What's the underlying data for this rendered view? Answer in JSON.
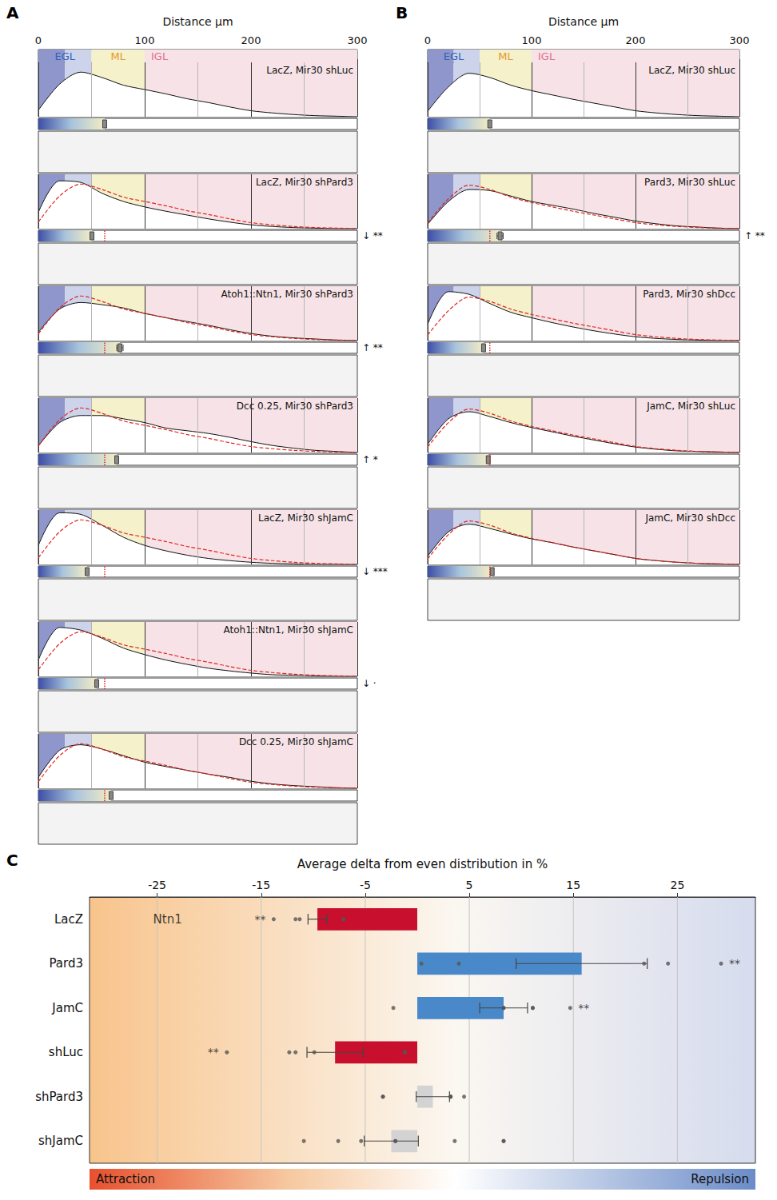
{
  "chart_data": [
    {
      "type": "line",
      "panel": "A",
      "x_title": "Distance µm",
      "xlim": [
        0,
        300
      ],
      "xticks": [
        0,
        100,
        200,
        300
      ],
      "ylim": [
        0,
        1
      ],
      "tick_labels": "x",
      "grid": true,
      "x": [
        0,
        20,
        40,
        60,
        80,
        100,
        120,
        140,
        160,
        180,
        200,
        220,
        240,
        260,
        280,
        300
      ],
      "bands": [
        {
          "from": 0,
          "to": 25,
          "color": "#8e96cc"
        },
        {
          "from": 25,
          "to": 50,
          "color": "#ccd3ea"
        },
        {
          "from": 50,
          "to": 100,
          "color": "#f4f1cb"
        },
        {
          "from": 100,
          "to": 300,
          "color": "#f7e3e7"
        }
      ],
      "zones": [
        {
          "name": "EGL",
          "from": 0,
          "to": 50,
          "color": "#2f63b8"
        },
        {
          "name": "ML",
          "from": 50,
          "to": 100,
          "color": "#e8972a"
        },
        {
          "name": "IGL",
          "from": 100,
          "to": 300,
          "color": "#e0708f"
        }
      ],
      "rows": [
        {
          "title": "LacZ, Mir30 shLuc",
          "values": [
            0.12,
            0.6,
            0.82,
            0.72,
            0.58,
            0.5,
            0.42,
            0.33,
            0.26,
            0.18,
            0.11,
            0.07,
            0.04,
            0.02,
            0.01,
            0
          ],
          "mean": 62.4,
          "mean_error": 1.5
        },
        {
          "title": "LacZ, Mir30 shPard3",
          "values": [
            0.3,
            0.88,
            0.85,
            0.65,
            0.5,
            0.4,
            0.32,
            0.25,
            0.18,
            0.12,
            0.07,
            0.04,
            0.02,
            0.01,
            0,
            0
          ],
          "reference_values": [
            0.12,
            0.6,
            0.82,
            0.72,
            0.58,
            0.5,
            0.42,
            0.33,
            0.26,
            0.18,
            0.11,
            0.07,
            0.04,
            0.02,
            0.01,
            0
          ],
          "mean": 50.4,
          "mean_error": 1.5,
          "reference_mean": 62.4,
          "significance": "↓ **"
        },
        {
          "title": "Atoh1::Ntn1, Mir30 shPard3",
          "values": [
            0.15,
            0.58,
            0.7,
            0.66,
            0.6,
            0.5,
            0.42,
            0.35,
            0.28,
            0.2,
            0.13,
            0.08,
            0.05,
            0.03,
            0.01,
            0
          ],
          "reference_values": [
            0.12,
            0.6,
            0.82,
            0.72,
            0.58,
            0.5,
            0.42,
            0.33,
            0.26,
            0.18,
            0.11,
            0.07,
            0.04,
            0.02,
            0.01,
            0
          ],
          "mean": 76.7,
          "mean_error": 3.0,
          "reference_mean": 62.4,
          "significance": "↑ **"
        },
        {
          "title": "Dcc 0.25, Mir30 shPard3",
          "values": [
            0.12,
            0.55,
            0.68,
            0.68,
            0.62,
            0.55,
            0.45,
            0.4,
            0.35,
            0.28,
            0.2,
            0.13,
            0.08,
            0.04,
            0.02,
            0
          ],
          "reference_values": [
            0.12,
            0.6,
            0.82,
            0.72,
            0.58,
            0.5,
            0.42,
            0.33,
            0.26,
            0.18,
            0.11,
            0.07,
            0.04,
            0.02,
            0.01,
            0
          ],
          "mean": 73.7,
          "mean_error": 1.5,
          "reference_mean": 62.4,
          "significance": "↑ *"
        },
        {
          "title": "LacZ, Mir30 shJamC",
          "values": [
            0.35,
            0.95,
            0.92,
            0.72,
            0.5,
            0.35,
            0.25,
            0.17,
            0.11,
            0.07,
            0.04,
            0.02,
            0.01,
            0,
            0,
            0
          ],
          "reference_values": [
            0.12,
            0.6,
            0.82,
            0.72,
            0.58,
            0.5,
            0.42,
            0.33,
            0.26,
            0.18,
            0.11,
            0.07,
            0.04,
            0.02,
            0.01,
            0
          ],
          "mean": 45.9,
          "mean_error": 1.5,
          "reference_mean": 62.4,
          "significance": "↓ ***"
        },
        {
          "title": "Atoh1::Ntn1, Mir30 shJamC",
          "values": [
            0.3,
            0.9,
            0.85,
            0.7,
            0.52,
            0.4,
            0.3,
            0.22,
            0.15,
            0.1,
            0.06,
            0.03,
            0.02,
            0.01,
            0,
            0
          ],
          "reference_values": [
            0.12,
            0.6,
            0.82,
            0.72,
            0.58,
            0.5,
            0.42,
            0.33,
            0.26,
            0.18,
            0.11,
            0.07,
            0.04,
            0.02,
            0.01,
            0
          ],
          "mean": 54.9,
          "mean_error": 1.5,
          "reference_mean": 62.4,
          "significance": "↓ ·"
        },
        {
          "title": "Dcc 0.25, Mir30 shJamC",
          "values": [
            0.2,
            0.7,
            0.8,
            0.72,
            0.6,
            0.48,
            0.4,
            0.33,
            0.26,
            0.2,
            0.13,
            0.08,
            0.05,
            0.03,
            0.01,
            0
          ],
          "reference_values": [
            0.12,
            0.6,
            0.82,
            0.72,
            0.58,
            0.5,
            0.42,
            0.33,
            0.26,
            0.18,
            0.11,
            0.07,
            0.04,
            0.02,
            0.01,
            0
          ],
          "mean": 68.4,
          "mean_error": 1.5,
          "reference_mean": 62.4
        }
      ]
    },
    {
      "type": "line",
      "panel": "B",
      "x_title": "Distance µm",
      "xlim": [
        0,
        300
      ],
      "xticks": [
        0,
        100,
        200,
        300
      ],
      "ylim": [
        0,
        1
      ],
      "tick_labels": "x",
      "grid": true,
      "x": [
        0,
        20,
        40,
        60,
        80,
        100,
        120,
        140,
        160,
        180,
        200,
        220,
        240,
        260,
        280,
        300
      ],
      "bands": [
        {
          "from": 0,
          "to": 25,
          "color": "#8e96cc"
        },
        {
          "from": 25,
          "to": 50,
          "color": "#ccd3ea"
        },
        {
          "from": 50,
          "to": 100,
          "color": "#f4f1cb"
        },
        {
          "from": 100,
          "to": 300,
          "color": "#f7e3e7"
        }
      ],
      "zones": [
        {
          "name": "EGL",
          "from": 0,
          "to": 50,
          "color": "#2f63b8"
        },
        {
          "name": "ML",
          "from": 50,
          "to": 100,
          "color": "#e8972a"
        },
        {
          "name": "IGL",
          "from": 100,
          "to": 300,
          "color": "#e0708f"
        }
      ],
      "rows": [
        {
          "title": "LacZ, Mir30 shLuc",
          "values": [
            0.1,
            0.55,
            0.8,
            0.72,
            0.58,
            0.48,
            0.4,
            0.32,
            0.25,
            0.18,
            0.11,
            0.07,
            0.04,
            0.02,
            0.01,
            0
          ],
          "mean": 59.8,
          "mean_error": 1.2
        },
        {
          "title": "Pard3, Mir30 shLuc",
          "values": [
            0.08,
            0.5,
            0.72,
            0.7,
            0.6,
            0.5,
            0.43,
            0.36,
            0.28,
            0.21,
            0.14,
            0.09,
            0.05,
            0.03,
            0.01,
            0
          ],
          "reference_values": [
            0.1,
            0.55,
            0.8,
            0.72,
            0.58,
            0.48,
            0.4,
            0.32,
            0.25,
            0.18,
            0.11,
            0.07,
            0.04,
            0.02,
            0.01,
            0
          ],
          "mean": 69.7,
          "mean_error": 3.0,
          "reference_mean": 59.8,
          "significance": "↑ **"
        },
        {
          "title": "Pard3, Mir30 shDcc",
          "values": [
            0.3,
            0.9,
            0.85,
            0.68,
            0.52,
            0.42,
            0.33,
            0.25,
            0.18,
            0.12,
            0.07,
            0.04,
            0.02,
            0.01,
            0,
            0
          ],
          "reference_values": [
            0.1,
            0.55,
            0.8,
            0.72,
            0.58,
            0.48,
            0.4,
            0.32,
            0.25,
            0.18,
            0.11,
            0.07,
            0.04,
            0.02,
            0.01,
            0
          ],
          "mean": 53.8,
          "mean_error": 1.0,
          "reference_mean": 59.8
        },
        {
          "title": "JamC, Mir30 shLuc",
          "values": [
            0.15,
            0.62,
            0.75,
            0.66,
            0.55,
            0.46,
            0.38,
            0.3,
            0.23,
            0.16,
            0.1,
            0.06,
            0.03,
            0.02,
            0.01,
            0
          ],
          "reference_values": [
            0.1,
            0.55,
            0.8,
            0.72,
            0.58,
            0.48,
            0.4,
            0.32,
            0.25,
            0.18,
            0.11,
            0.07,
            0.04,
            0.02,
            0.01,
            0
          ],
          "mean": 58.3,
          "mean_error": 1.2,
          "reference_mean": 59.8
        },
        {
          "title": "JamC, Mir30 shDcc",
          "values": [
            0.15,
            0.6,
            0.74,
            0.66,
            0.56,
            0.47,
            0.4,
            0.32,
            0.25,
            0.18,
            0.11,
            0.07,
            0.04,
            0.02,
            0.01,
            0
          ],
          "reference_values": [
            0.1,
            0.55,
            0.8,
            0.72,
            0.58,
            0.48,
            0.4,
            0.32,
            0.25,
            0.18,
            0.11,
            0.07,
            0.04,
            0.02,
            0.01,
            0
          ],
          "mean": 62.1,
          "mean_error": 1.2,
          "reference_mean": 59.8
        }
      ]
    },
    {
      "type": "bar",
      "panel": "C",
      "orientation": "horizontal",
      "x_title": "Average delta from even distribution in %",
      "xlim": [
        -31.5,
        32.5
      ],
      "xticks": [
        -25,
        -15,
        -5,
        5,
        15,
        25
      ],
      "grid": true,
      "categories": [
        "LacZ",
        "Pard3",
        "JamC",
        "shLuc",
        "shPard3",
        "shJamC"
      ],
      "values": [
        -9.6,
        15.8,
        8.3,
        -7.9,
        1.5,
        -2.5
      ],
      "errors": [
        0.9,
        6.3,
        2.3,
        2.7,
        1.6,
        2.6
      ],
      "colors": [
        "#c8102e",
        "#4a89c9",
        "#4a89c9",
        "#c8102e",
        "#d3d3d3",
        "#d3d3d3"
      ],
      "points": [
        [
          -13.8,
          -11.7,
          -11.3,
          -7.1,
          -7.1
        ],
        [
          0.4,
          4.0,
          21.8,
          24.1,
          29.2
        ],
        [
          -2.3,
          8.3,
          8.3,
          11.1,
          11.1,
          14.7
        ],
        [
          -18.3,
          -12.3,
          -11.7,
          -9.9,
          -1.2,
          -1.2
        ],
        [
          -3.3,
          -3.3,
          3.2,
          3.2,
          3.2,
          4.5
        ],
        [
          -10.9,
          -7.6,
          -5.4,
          -2.1,
          -2.1,
          3.6,
          8.3,
          8.3
        ]
      ],
      "significance": [
        "**",
        "**",
        "**",
        "**",
        null,
        null
      ],
      "annotations": [
        {
          "text": "Ntn1",
          "x": -24,
          "category": "LacZ"
        }
      ],
      "scale_labels": [
        "Attraction",
        "Repulsion"
      ]
    }
  ]
}
